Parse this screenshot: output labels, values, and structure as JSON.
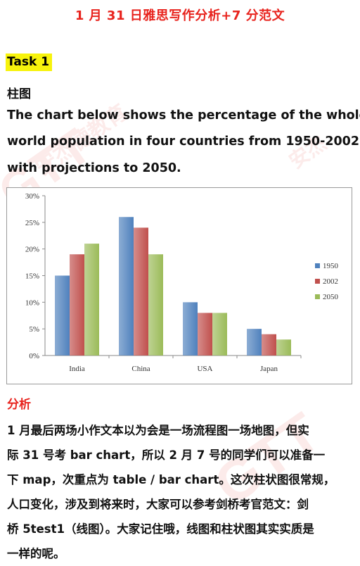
{
  "page_title": "1 月 31 日雅思写作分析+7 分范文",
  "task_label": "Task 1",
  "chart_kind_label": "柱图",
  "prompt_lines": [
    "The chart below shows the percentage of the whole",
    "world population in four countries from 1950-2002,",
    "with projections to 2050."
  ],
  "analysis_heading": "分析",
  "analysis_lines": [
    "1 月最后两场小作文本以为会是一场流程图一场地图，但实",
    "际 31 号考 bar  chart，所以 2 月 7 号的同学们可以准备一",
    "下 map，次重点为 table / bar chart。这次柱状图很常规，",
    "人口变化，涉及到将来时，大家可以参考剑桥考官范文：剑",
    "桥 5test1（线图）。大家记住哦，线图和柱状图其实实质是",
    "一样的呢。"
  ],
  "chart_data": {
    "type": "bar",
    "categories": [
      "India",
      "China",
      "USA",
      "Japan"
    ],
    "series": [
      {
        "name": "1950",
        "values": [
          15,
          26,
          10,
          5
        ],
        "color": "#4f81bd"
      },
      {
        "name": "2002",
        "values": [
          19,
          24,
          8,
          4
        ],
        "color": "#c0504d"
      },
      {
        "name": "2050",
        "values": [
          21,
          19,
          8,
          3
        ],
        "color": "#9bbb59"
      }
    ],
    "ylim": [
      0,
      30
    ],
    "yticks": [
      0,
      5,
      10,
      15,
      20,
      25,
      30
    ],
    "ytick_labels": [
      "0%",
      "5%",
      "10%",
      "15%",
      "20%",
      "25%",
      "30%"
    ],
    "legend_position": "right",
    "grid": false
  },
  "watermark_text": [
    "GLOBAL TOP TEST",
    "安杰德教育",
    "GTT"
  ]
}
